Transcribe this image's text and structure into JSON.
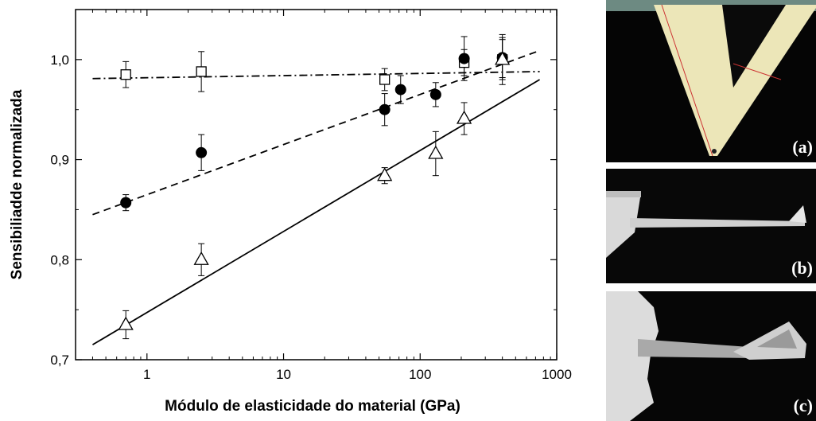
{
  "chart_data": {
    "type": "scatter",
    "xscale": "log",
    "xlim": [
      0.3,
      1000
    ],
    "ylim": [
      0.7,
      1.05
    ],
    "xlabel": "Módulo de elasticidade do material (GPa)",
    "ylabel": "Sensibiliadde normalizada",
    "xticks": [
      {
        "value": 1,
        "label": "1"
      },
      {
        "value": 10,
        "label": "10"
      },
      {
        "value": 100,
        "label": "100"
      },
      {
        "value": 1000,
        "label": "1000"
      }
    ],
    "yticks": [
      {
        "value": 0.7,
        "label": "0,7"
      },
      {
        "value": 0.8,
        "label": "0,8"
      },
      {
        "value": 0.9,
        "label": "0,9"
      },
      {
        "value": 1.0,
        "label": "1,0"
      }
    ],
    "grid": false,
    "series": [
      {
        "marker": "open-square",
        "fit_line": "dash-dot",
        "points": [
          {
            "x": 0.7,
            "y": 0.985,
            "err": 0.013
          },
          {
            "x": 2.5,
            "y": 0.988,
            "err": 0.02
          },
          {
            "x": 55,
            "y": 0.98,
            "err": 0.011
          },
          {
            "x": 210,
            "y": 0.997,
            "err": 0.013
          },
          {
            "x": 400,
            "y": 1.0,
            "err": 0.025
          }
        ],
        "fit": {
          "x": [
            0.4,
            750
          ],
          "y": [
            0.981,
            0.988
          ]
        }
      },
      {
        "marker": "filled-circle",
        "fit_line": "dashed",
        "points": [
          {
            "x": 0.7,
            "y": 0.857,
            "err": 0.008
          },
          {
            "x": 2.5,
            "y": 0.907,
            "err": 0.018
          },
          {
            "x": 55,
            "y": 0.95,
            "err": 0.016
          },
          {
            "x": 72,
            "y": 0.97,
            "err": 0.014
          },
          {
            "x": 130,
            "y": 0.965,
            "err": 0.012
          },
          {
            "x": 210,
            "y": 1.001,
            "err": 0.022
          },
          {
            "x": 400,
            "y": 1.002,
            "err": 0.02
          }
        ],
        "fit": {
          "x": [
            0.4,
            750
          ],
          "y": [
            0.845,
            1.009
          ]
        }
      },
      {
        "marker": "open-triangle",
        "fit_line": "solid",
        "points": [
          {
            "x": 0.7,
            "y": 0.735,
            "err": 0.014
          },
          {
            "x": 2.5,
            "y": 0.8,
            "err": 0.016
          },
          {
            "x": 55,
            "y": 0.884,
            "err": 0.008
          },
          {
            "x": 130,
            "y": 0.906,
            "err": 0.022
          },
          {
            "x": 210,
            "y": 0.941,
            "err": 0.016
          },
          {
            "x": 400,
            "y": 1.0,
            "err": 0.02
          }
        ],
        "fit": {
          "x": [
            0.4,
            750
          ],
          "y": [
            0.715,
            0.98
          ]
        }
      }
    ]
  },
  "panels": [
    {
      "label": "(a)"
    },
    {
      "label": "(b)"
    },
    {
      "label": "(c)"
    }
  ]
}
